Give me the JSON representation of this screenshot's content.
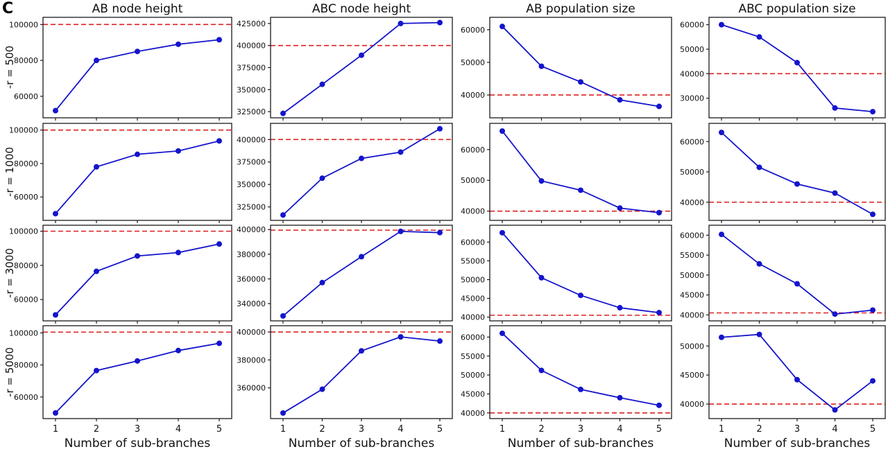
{
  "figure": {
    "panel_label": "C"
  },
  "chart_data": {
    "type": "line",
    "x": [
      1,
      2,
      3,
      4,
      5
    ],
    "xlabel": "Number of sub-branches",
    "columns": [
      "AB node height",
      "ABC node height",
      "AB population size",
      "ABC population size"
    ],
    "rows": [
      "-r = 500",
      "-r = 1000",
      "-r = 3000",
      "-r = 5000"
    ],
    "line_color": "#1414cc",
    "ref_line_color": "#dd2020",
    "ref_line_style": "dashed",
    "marker": "circle",
    "grid": false,
    "legend": "none",
    "panels": [
      {
        "row_label": "-r = 500",
        "col_title": "AB node height",
        "y": [
          52000,
          80000,
          85000,
          89000,
          91500
        ],
        "ref": 100000,
        "yticks": [
          60000,
          80000,
          100000
        ],
        "ylim": [
          48000,
          104000
        ]
      },
      {
        "row_label": "-r = 500",
        "col_title": "ABC node height",
        "y": [
          323000,
          356000,
          389000,
          425000,
          426000
        ],
        "ref": 400000,
        "yticks": [
          325000,
          350000,
          375000,
          400000,
          425000
        ],
        "ylim": [
          318000,
          432000
        ]
      },
      {
        "row_label": "-r = 500",
        "col_title": "AB population size",
        "y": [
          61000,
          48800,
          44000,
          38500,
          36500
        ],
        "ref": 40000,
        "yticks": [
          40000,
          50000,
          60000
        ],
        "ylim": [
          33000,
          63800
        ]
      },
      {
        "row_label": "-r = 500",
        "col_title": "ABC population size",
        "y": [
          60000,
          55000,
          44500,
          26000,
          24500
        ],
        "ref": 40000,
        "yticks": [
          30000,
          40000,
          50000,
          60000
        ],
        "ylim": [
          22000,
          63000
        ]
      },
      {
        "row_label": "-r = 1000",
        "col_title": "AB node height",
        "y": [
          50000,
          78000,
          85500,
          87500,
          93500
        ],
        "ref": 100000,
        "yticks": [
          60000,
          80000,
          100000
        ],
        "ylim": [
          46000,
          104000
        ]
      },
      {
        "row_label": "-r = 1000",
        "col_title": "ABC node height",
        "y": [
          316000,
          357000,
          379000,
          386000,
          412000
        ],
        "ref": 400000,
        "yticks": [
          325000,
          350000,
          375000,
          400000
        ],
        "ylim": [
          310000,
          418000
        ]
      },
      {
        "row_label": "-r = 1000",
        "col_title": "AB population size",
        "y": [
          66000,
          49800,
          46800,
          41000,
          39500
        ],
        "ref": 40000,
        "yticks": [
          40000,
          50000,
          60000
        ],
        "ylim": [
          37000,
          68500
        ]
      },
      {
        "row_label": "-r = 1000",
        "col_title": "ABC population size",
        "y": [
          63000,
          51500,
          46000,
          43000,
          36000
        ],
        "ref": 40000,
        "yticks": [
          40000,
          50000,
          60000
        ],
        "ylim": [
          34000,
          66000
        ]
      },
      {
        "row_label": "-r = 3000",
        "col_title": "AB node height",
        "y": [
          51000,
          76500,
          85500,
          87500,
          92500
        ],
        "ref": 100000,
        "yticks": [
          60000,
          80000,
          100000
        ],
        "ylim": [
          47500,
          103500
        ]
      },
      {
        "row_label": "-r = 3000",
        "col_title": "ABC node height",
        "y": [
          330000,
          357000,
          378000,
          398500,
          397500
        ],
        "ref": 399500,
        "yticks": [
          340000,
          360000,
          380000,
          400000
        ],
        "ylim": [
          326000,
          403500
        ]
      },
      {
        "row_label": "-r = 3000",
        "col_title": "AB population size",
        "y": [
          62500,
          50500,
          45800,
          42500,
          41200
        ],
        "ref": 40500,
        "yticks": [
          40000,
          45000,
          50000,
          55000,
          60000
        ],
        "ylim": [
          39000,
          64500
        ]
      },
      {
        "row_label": "-r = 3000",
        "col_title": "ABC population size",
        "y": [
          60200,
          52800,
          47800,
          40200,
          41200
        ],
        "ref": 40500,
        "yticks": [
          40000,
          45000,
          50000,
          55000,
          60000
        ],
        "ylim": [
          38500,
          62500
        ]
      },
      {
        "row_label": "-r = 5000",
        "col_title": "AB node height",
        "y": [
          50000,
          76500,
          82500,
          89000,
          93500
        ],
        "ref": 100500,
        "yticks": [
          60000,
          80000,
          100000
        ],
        "ylim": [
          46500,
          104500
        ]
      },
      {
        "row_label": "-r = 5000",
        "col_title": "ABC node height",
        "y": [
          342000,
          359000,
          386500,
          396500,
          393500
        ],
        "ref": 400000,
        "yticks": [
          360000,
          380000,
          400000
        ],
        "ylim": [
          338000,
          404500
        ]
      },
      {
        "row_label": "-r = 5000",
        "col_title": "AB population size",
        "y": [
          61000,
          51200,
          46200,
          44000,
          42000
        ],
        "ref": 40000,
        "yticks": [
          40000,
          45000,
          50000,
          55000,
          60000
        ],
        "ylim": [
          38500,
          63000
        ]
      },
      {
        "row_label": "-r = 5000",
        "col_title": "ABC population size",
        "y": [
          51500,
          52000,
          44200,
          39000,
          44000
        ],
        "ref": 40000,
        "yticks": [
          40000,
          45000,
          50000
        ],
        "ylim": [
          37500,
          53500
        ]
      }
    ]
  }
}
